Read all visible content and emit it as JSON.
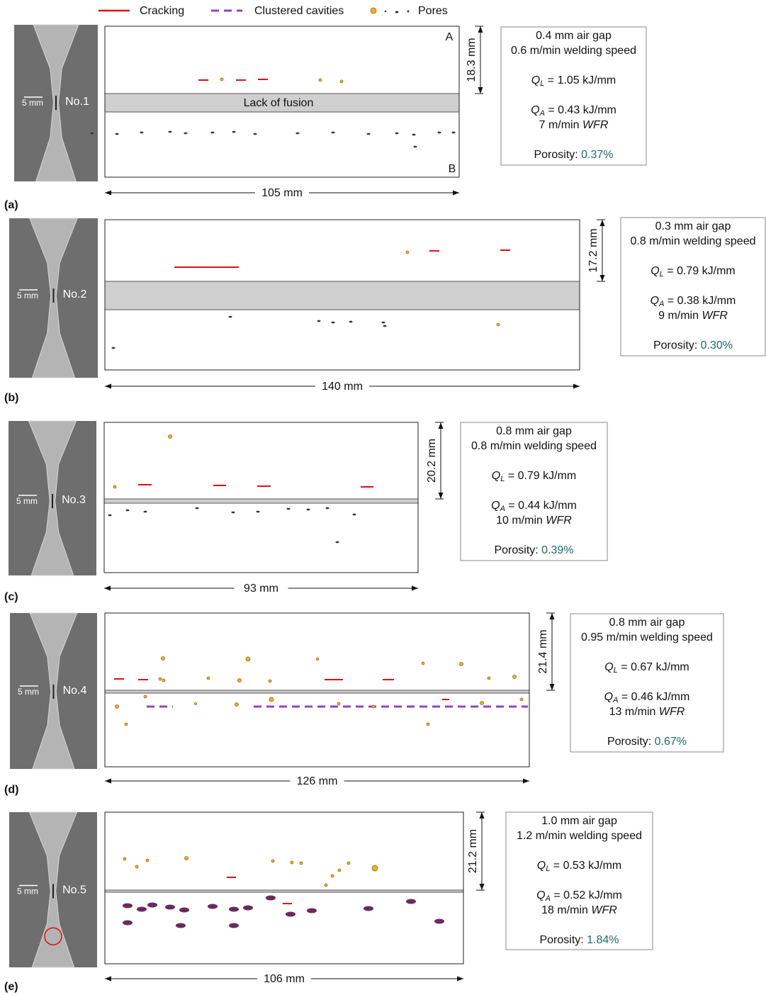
{
  "legend": {
    "cracking": "Cracking",
    "clustered_cavities": "Clustered cavities",
    "pores": "Pores"
  },
  "panels": [
    {
      "label": "(a)",
      "specimen": "No.1",
      "scale": "5 mm",
      "thickness": "18.3 mm",
      "length": "105 mm",
      "lack_of_fusion": "Lack of fusion",
      "top": "A",
      "bottom": "B",
      "info": {
        "gap": "0.4 mm air gap",
        "speed": "0.6 m/min welding speed",
        "ql": {
          "symbol": "Q",
          "sub": "L",
          "value": " = 1.05 kJ/mm"
        },
        "qa": {
          "symbol": "Q",
          "sub": "A",
          "value": " = 0.43 kJ/mm"
        },
        "wfr": {
          "value": "7 m/min ",
          "unit": "WFR"
        },
        "porosity_label": "Porosity: ",
        "porosity": "0.37%"
      }
    },
    {
      "label": "(b)",
      "specimen": "No.2",
      "scale": "5 mm",
      "thickness": "17.2 mm",
      "length": "140 mm",
      "info": {
        "gap": "0.3 mm air gap",
        "speed": "0.8 m/min welding speed",
        "ql": {
          "symbol": "Q",
          "sub": "L",
          "value": " = 0.79 kJ/mm"
        },
        "qa": {
          "symbol": "Q",
          "sub": "A",
          "value": " = 0.38 kJ/mm"
        },
        "wfr": {
          "value": "9 m/min ",
          "unit": "WFR"
        },
        "porosity_label": "Porosity: ",
        "porosity": "0.30%"
      }
    },
    {
      "label": "(c)",
      "specimen": "No.3",
      "scale": "5 mm",
      "thickness": "20.2 mm",
      "length": "93 mm",
      "info": {
        "gap": "0.8 mm air gap",
        "speed": "0.8 m/min welding speed",
        "ql": {
          "symbol": "Q",
          "sub": "L",
          "value": " = 0.79 kJ/mm"
        },
        "qa": {
          "symbol": "Q",
          "sub": "A",
          "value": " = 0.44 kJ/mm"
        },
        "wfr": {
          "value": "10 m/min ",
          "unit": "WFR"
        },
        "porosity_label": "Porosity: ",
        "porosity": "0.39%"
      }
    },
    {
      "label": "(d)",
      "specimen": "No.4",
      "scale": "5 mm",
      "thickness": "21.4 mm",
      "length": "126 mm",
      "info": {
        "gap": "0.8 mm air gap",
        "speed": "0.95 m/min welding speed",
        "ql": {
          "symbol": "Q",
          "sub": "L",
          "value": " = 0.67 kJ/mm"
        },
        "qa": {
          "symbol": "Q",
          "sub": "A",
          "value": " = 0.46 kJ/mm"
        },
        "wfr": {
          "value": "13 m/min ",
          "unit": "WFR"
        },
        "porosity_label": "Porosity: ",
        "porosity": "0.67%"
      }
    },
    {
      "label": "(e)",
      "specimen": "No.5",
      "scale": "5 mm",
      "thickness": "21.2 mm",
      "length": "106 mm",
      "info": {
        "gap": "1.0 mm air gap",
        "speed": "1.2 m/min welding speed",
        "ql": {
          "symbol": "Q",
          "sub": "L",
          "value": " = 0.53 kJ/mm"
        },
        "qa": {
          "symbol": "Q",
          "sub": "A",
          "value": " = 0.52 kJ/mm"
        },
        "wfr": {
          "value": "18 m/min ",
          "unit": "WFR"
        },
        "porosity_label": "Porosity: ",
        "porosity": "1.84%"
      }
    }
  ]
}
